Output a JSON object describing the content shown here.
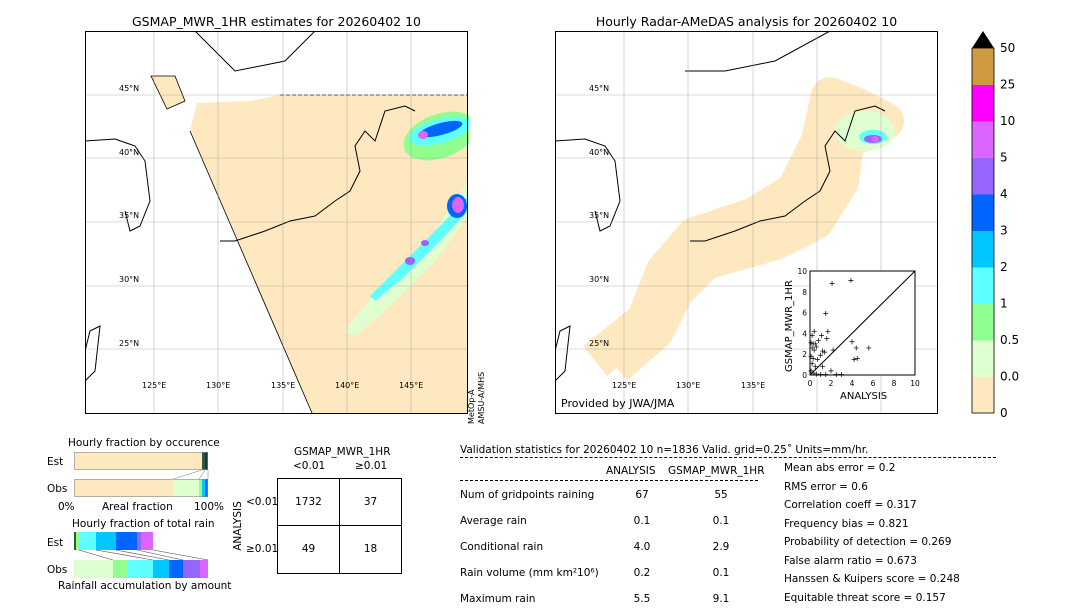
{
  "left_map": {
    "title": "GSMAP_MWR_1HR estimates for 20260402 10",
    "sensor_label_1": "MetOp-A",
    "sensor_label_2": "AMSU-A/MHS",
    "lat_labels": [
      "45°N",
      "40°N",
      "35°N",
      "30°N",
      "25°N"
    ],
    "lon_labels": [
      "125°E",
      "130°E",
      "135°E",
      "140°E",
      "145°E"
    ]
  },
  "right_map": {
    "title": "Hourly Radar-AMeDAS analysis for 20260402 10",
    "credit": "Provided by JWA/JMA",
    "lat_labels": [
      "45°N",
      "40°N",
      "35°N",
      "30°N",
      "25°N"
    ],
    "lon_labels": [
      "125°E",
      "130°E",
      "135°E"
    ]
  },
  "colorbar": {
    "ticks": [
      "0",
      "0.01",
      "0.5",
      "1",
      "2",
      "3",
      "4",
      "5",
      "10",
      "25",
      "50"
    ],
    "colors": [
      "#fee8c0",
      "#e0ffd0",
      "#90ff90",
      "#60ffff",
      "#00c8ff",
      "#0064ff",
      "#9664ff",
      "#dc64ff",
      "#ff00ff",
      "#d09a40"
    ],
    "extend_color": "#000000"
  },
  "chart_data": [
    {
      "type": "scatter",
      "xlabel": "ANALYSIS",
      "ylabel": "GSMAP_MWR_1HR",
      "xlim": [
        0,
        10
      ],
      "ylim": [
        0,
        10
      ],
      "xticks": [
        "0",
        "2",
        "4",
        "6",
        "8",
        "10"
      ],
      "yticks": [
        "0",
        "2",
        "4",
        "6",
        "8",
        "10"
      ],
      "points": [
        [
          2.1,
          8.8
        ],
        [
          3.9,
          9.1
        ],
        [
          1.5,
          5.9
        ],
        [
          1.7,
          4.2
        ],
        [
          0.4,
          4.2
        ],
        [
          1.1,
          3.8
        ],
        [
          1.6,
          3.5
        ],
        [
          0.2,
          3.8
        ],
        [
          0.1,
          3.1
        ],
        [
          0.3,
          3.0
        ],
        [
          0.5,
          3.0
        ],
        [
          0.8,
          3.3
        ],
        [
          0.2,
          2.6
        ],
        [
          0.4,
          2.4
        ],
        [
          0.6,
          2.7
        ],
        [
          1.2,
          2.3
        ],
        [
          1.4,
          2.2
        ],
        [
          2.2,
          2.4
        ],
        [
          4.0,
          3.2
        ],
        [
          4.4,
          2.6
        ],
        [
          5.6,
          2.6
        ],
        [
          4.2,
          1.5
        ],
        [
          4.5,
          1.6
        ],
        [
          0.1,
          1.8
        ],
        [
          0.3,
          1.6
        ],
        [
          0.7,
          1.5
        ],
        [
          1.0,
          1.9
        ],
        [
          0.2,
          1.1
        ],
        [
          0.5,
          0.8
        ],
        [
          1.2,
          0.8
        ],
        [
          2.0,
          0.4
        ],
        [
          0.1,
          0.4
        ],
        [
          0.3,
          0.2
        ],
        [
          0.6,
          0.1
        ],
        [
          1.0,
          0.05
        ],
        [
          1.5,
          0.05
        ],
        [
          2.5,
          0.05
        ],
        [
          3.0,
          0.05
        ]
      ]
    },
    {
      "type": "bar",
      "title": "Hourly fraction by occurence",
      "xlabel": "Areal fraction",
      "xtick_left": "0%",
      "xtick_right": "100%",
      "categories": [
        "Est",
        "Obs"
      ]
    },
    {
      "type": "bar",
      "title": "Hourly fraction of total rain",
      "xlabel": "Rainfall accumulation by amount",
      "categories": [
        "Est",
        "Obs"
      ]
    }
  ],
  "contingency": {
    "title": "GSMAP_MWR_1HR",
    "col_labels": [
      "<0.01",
      "≥0.01"
    ],
    "row_title": "ANALYSIS",
    "row_labels": [
      "<0.01",
      "≥0.01"
    ],
    "cells": [
      [
        "1732",
        "37"
      ],
      [
        "49",
        "18"
      ]
    ]
  },
  "stats": {
    "header": "Validation statistics for 20260402 10  n=1836 Valid. grid=0.25˚ Units=mm/hr.",
    "col_headers": [
      "ANALYSIS",
      "GSMAP_MWR_1HR"
    ],
    "rows": [
      {
        "label": "Num of gridpoints raining",
        "a": "67",
        "b": "55"
      },
      {
        "label": "Average rain",
        "a": "0.1",
        "b": "0.1"
      },
      {
        "label": "Conditional rain",
        "a": "4.0",
        "b": "2.9"
      },
      {
        "label": "Rain volume (mm km²10⁶)",
        "a": "0.2",
        "b": "0.1"
      },
      {
        "label": "Maximum rain",
        "a": "5.5",
        "b": "9.1"
      }
    ],
    "scores": [
      "Mean abs error =    0.2",
      "RMS error =    0.6",
      "Correlation coeff =  0.317",
      "Frequency bias =  0.821",
      "Probability of detection =  0.269",
      "False alarm ratio =  0.673",
      "Hanssen & Kuipers score =  0.248",
      "Equitable threat score =  0.157"
    ]
  }
}
